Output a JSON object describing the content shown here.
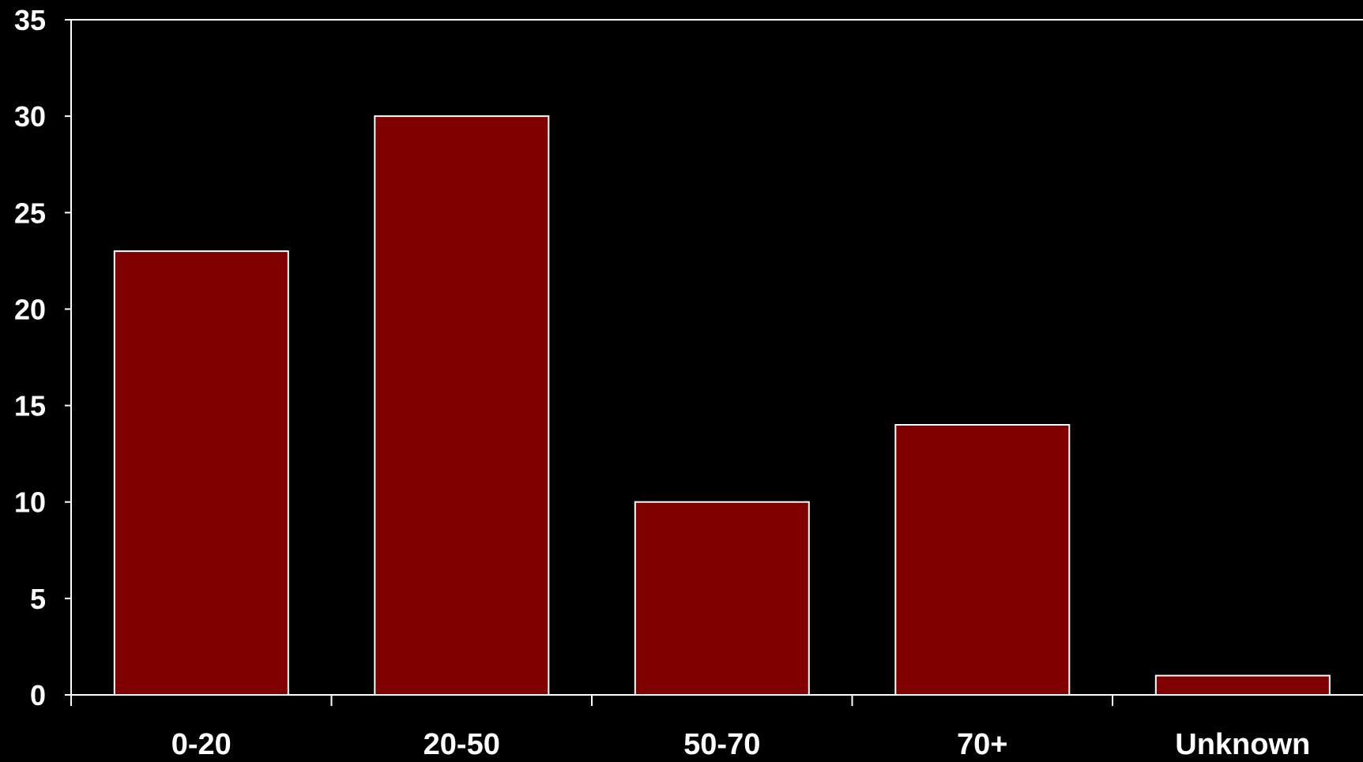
{
  "chart_data": {
    "type": "bar",
    "categories": [
      "0-20",
      "20-50",
      "50-70",
      "70+",
      "Unknown"
    ],
    "values": [
      23,
      30,
      10,
      14,
      1
    ],
    "title": "",
    "xlabel": "",
    "ylabel": "",
    "ylim": [
      0,
      35
    ],
    "yticks": [
      0,
      5,
      10,
      15,
      20,
      25,
      30,
      35
    ],
    "grid": false,
    "legend": "none"
  },
  "colors": {
    "background": "#000000",
    "bar_fill": "#800000",
    "bar_stroke": "#ffffff",
    "axis": "#ffffff",
    "text": "#ffffff"
  }
}
